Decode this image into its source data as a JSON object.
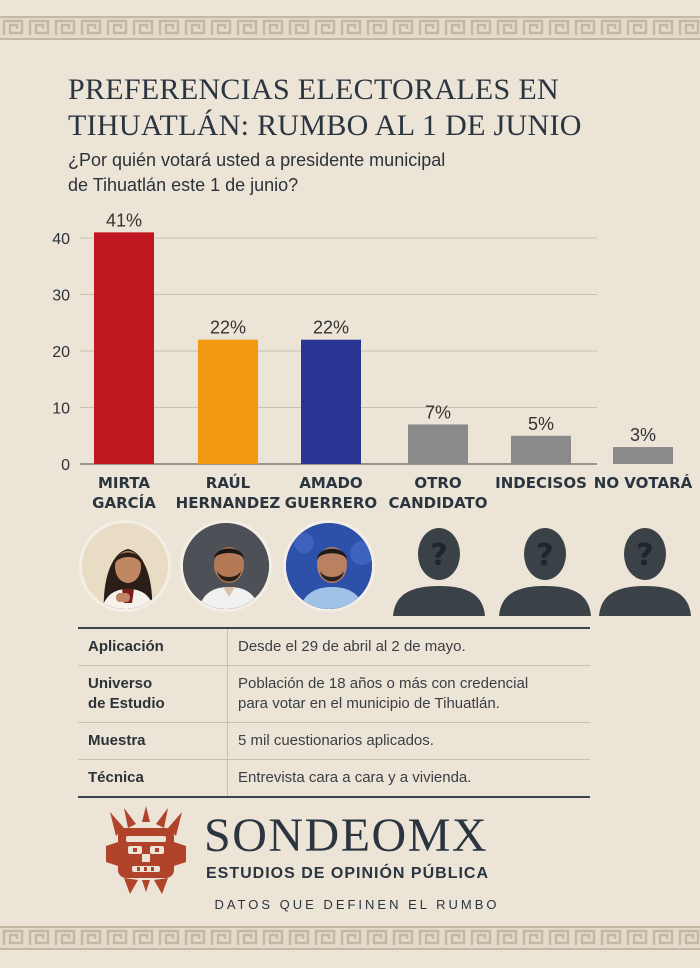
{
  "title_lines": [
    "PREFERENCIAS ELECTORALES EN",
    "TIHUATLÁN: RUMBO AL 1 DE JUNIO"
  ],
  "subtitle_lines": [
    "¿Por quién votará usted a presidente municipal",
    "de Tihuatlán este 1 de junio?"
  ],
  "chart_data": {
    "type": "bar",
    "categories": [
      [
        "MIRTA",
        "GARCÍA"
      ],
      [
        "RAÚL",
        "HERNANDEZ"
      ],
      [
        "AMADO",
        "GUERRERO"
      ],
      [
        "OTRO",
        "CANDIDATO"
      ],
      [
        "INDECISOS"
      ],
      [
        "NO VOTARÁ"
      ]
    ],
    "values": [
      41,
      22,
      22,
      7,
      5,
      3
    ],
    "value_labels": [
      "41%",
      "22%",
      "22%",
      "7%",
      "5%",
      "3%"
    ],
    "bar_colors": [
      "#c0161f",
      "#f39a12",
      "#283593",
      "#8a8a8a",
      "#8a8a8a",
      "#8a8a8a"
    ],
    "y_ticks": [
      0,
      10,
      20,
      30,
      40
    ],
    "ylim": [
      0,
      40
    ],
    "grid": true,
    "title": "",
    "xlabel": "",
    "ylabel": ""
  },
  "photos": [
    {
      "icon": "candidate-mirta-garcia-photo"
    },
    {
      "icon": "candidate-raul-hernandez-photo"
    },
    {
      "icon": "candidate-amado-guerrero-photo"
    },
    {
      "icon": "unknown-person-icon"
    },
    {
      "icon": "unknown-person-icon"
    },
    {
      "icon": "unknown-person-icon"
    }
  ],
  "methodology": [
    {
      "label": [
        "Aplicación"
      ],
      "value": [
        "Desde el 29 de abril al 2 de mayo."
      ]
    },
    {
      "label": [
        "Universo",
        "de Estudio"
      ],
      "value": [
        "Población de 18 años o más con credencial",
        "para votar en el municipio de Tihuatlán."
      ]
    },
    {
      "label": [
        "Muestra"
      ],
      "value": [
        "5 mil cuestionarios aplicados."
      ]
    },
    {
      "label": [
        "Técnica"
      ],
      "value": [
        "Entrevista cara a cara y  a vivienda."
      ]
    }
  ],
  "brand": {
    "name": "SONDEOMX",
    "tagline": "ESTUDIOS DE OPINIÓN PÚBLICA",
    "slogan": "DATOS QUE DEFINEN EL RUMBO",
    "accent": "#b0432a"
  }
}
